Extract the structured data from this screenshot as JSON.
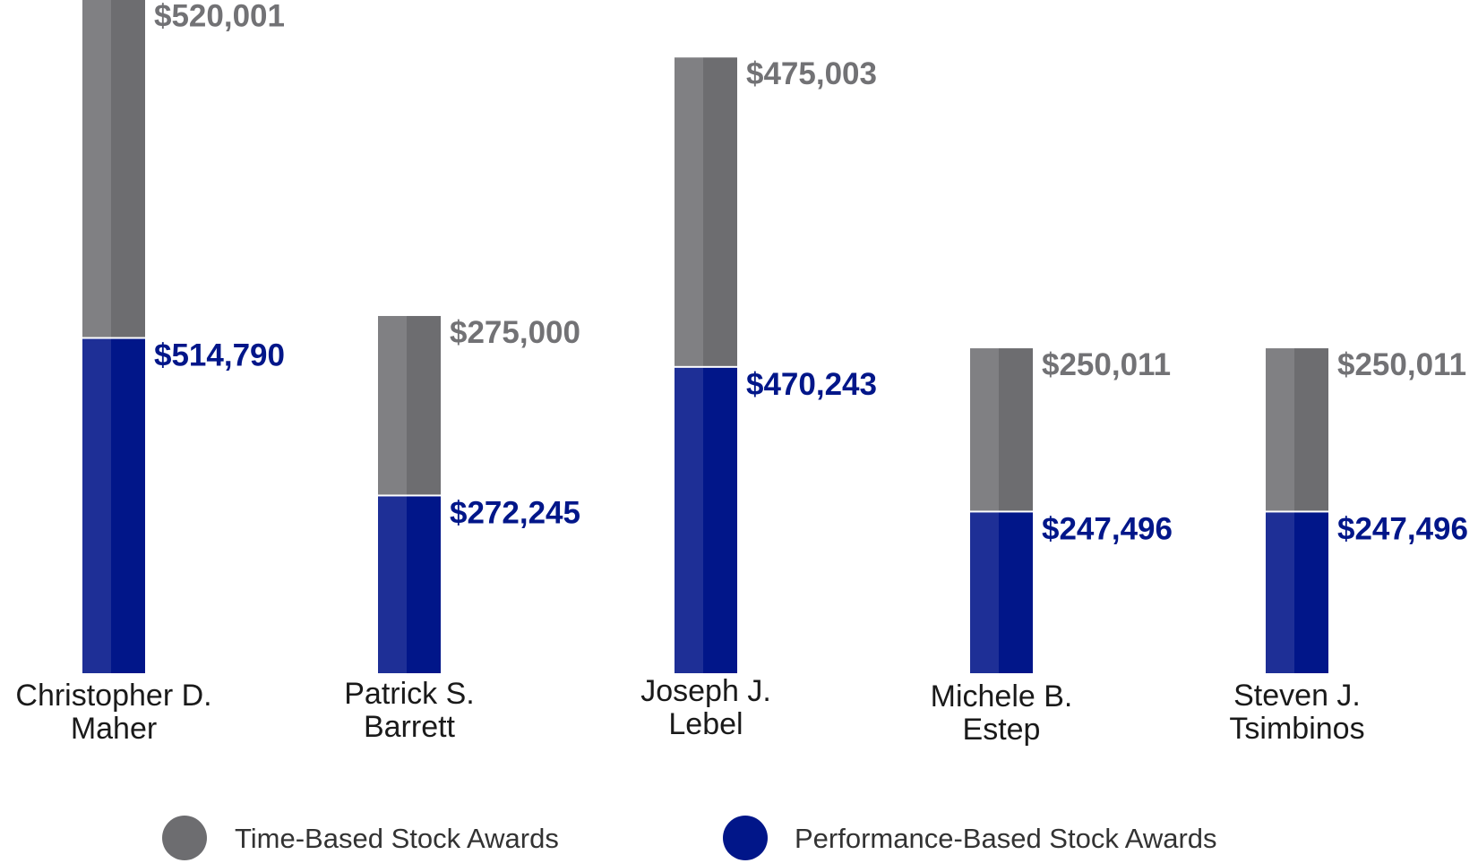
{
  "chart_data": {
    "type": "bar",
    "stacked": true,
    "categories": [
      [
        "Christopher D.",
        "Maher"
      ],
      [
        "Patrick S.",
        "Barrett"
      ],
      [
        "Joseph J.",
        "Lebel"
      ],
      [
        "Michele B.",
        "Estep"
      ],
      [
        "Steven J.",
        "Tsimbinos"
      ]
    ],
    "series": [
      {
        "name": "Performance-Based Stock Awards",
        "color": "#011689",
        "color_light": "#1e2f96",
        "label_color": "#011689",
        "values": [
          514790,
          272245,
          470243,
          247496,
          247496
        ],
        "labels": [
          "$514,790",
          "$272,245",
          "$470,243",
          "$247,496",
          "$247,496"
        ]
      },
      {
        "name": "Time-Based Stock Awards",
        "color": "#6d6d70",
        "color_light": "#808083",
        "label_color": "#727275",
        "values": [
          520001,
          275000,
          475003,
          250011,
          250011
        ],
        "labels": [
          "$520,001",
          "$275,000",
          "$475,003",
          "$250,011",
          "$250,011"
        ]
      }
    ],
    "legend": {
      "position": "bottom",
      "items": [
        "Time-Based Stock Awards",
        "Performance-Based Stock Awards"
      ]
    },
    "title": "",
    "xlabel": "",
    "ylabel": "",
    "grid": false,
    "axes_visible": false
  }
}
